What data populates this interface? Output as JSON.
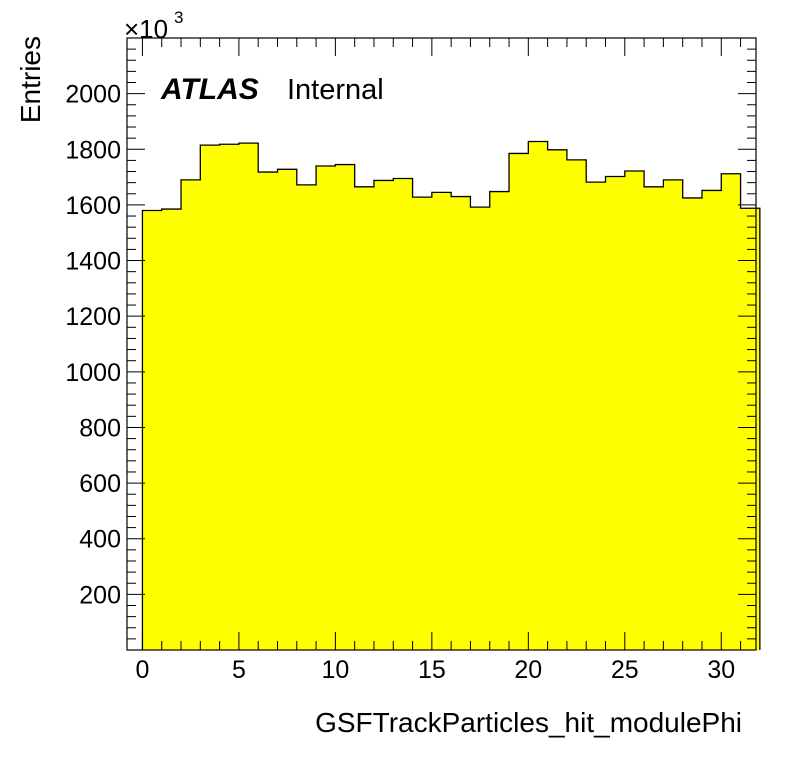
{
  "chart_data": {
    "type": "bar",
    "style": "histogram",
    "fill_color": "#ffff00",
    "line_color": "#000000",
    "xlabel": "GSFTrackParticles_hit_modulePhi",
    "ylabel": "Entries",
    "y_multiplier": "×10",
    "y_multiplier_exponent": "3",
    "label_bold": "ATLAS",
    "label_plain": "Internal",
    "xlim": [
      -0.8,
      31.8
    ],
    "ylim": [
      0,
      2200
    ],
    "bin_edges_start": 0,
    "bin_width": 1,
    "values": [
      1580,
      1585,
      1690,
      1815,
      1818,
      1822,
      1718,
      1728,
      1672,
      1740,
      1745,
      1665,
      1688,
      1695,
      1628,
      1645,
      1630,
      1592,
      1648,
      1785,
      1828,
      1798,
      1762,
      1682,
      1702,
      1722,
      1665,
      1690,
      1625,
      1652,
      1712,
      1588
    ],
    "x_major_ticks": [
      0,
      5,
      10,
      15,
      20,
      25,
      30
    ],
    "x_tick_labels": [
      "0",
      "5",
      "10",
      "15",
      "20",
      "25",
      "30"
    ],
    "y_major_ticks": [
      200,
      400,
      600,
      800,
      1000,
      1200,
      1400,
      1600,
      1800,
      2000
    ],
    "y_tick_labels": [
      "200",
      "400",
      "600",
      "800",
      "1000",
      "1200",
      "1400",
      "1600",
      "1800",
      "2000"
    ],
    "grid": false
  }
}
